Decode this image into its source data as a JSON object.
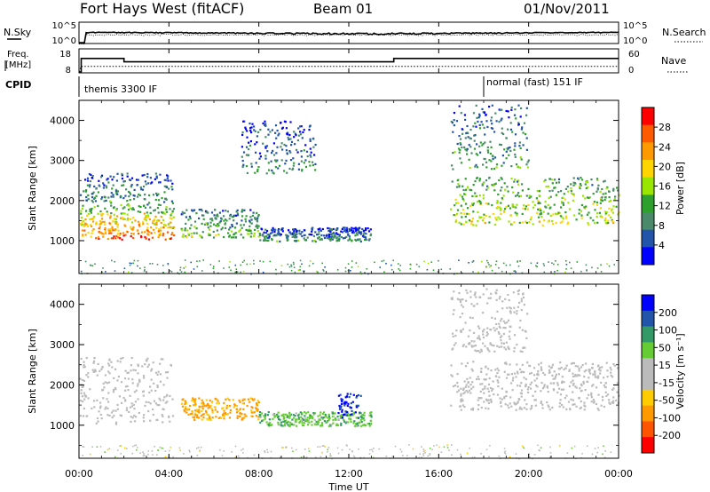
{
  "header": {
    "station": "Fort Hays West (fitACF)",
    "beam": "Beam 01",
    "date": "01/Nov/2011"
  },
  "noise_panel": {
    "left_label": "N.Sky",
    "right_label": "N.Search",
    "left_ticks": [
      "10^5",
      "10^0"
    ],
    "right_ticks": [
      "10^5",
      "10^0"
    ]
  },
  "freq_panel": {
    "left_label_1": "Freq.",
    "left_label_2": "[MHz]",
    "left_ticks": [
      "18",
      "8"
    ],
    "right_label": "Nave",
    "right_ticks": [
      "60",
      "0"
    ]
  },
  "cpid": {
    "label": "CPID",
    "modes": [
      {
        "name": "themis 3300 IF",
        "start_hour": 0,
        "end_hour": 18
      },
      {
        "name": "normal (fast) 151 IF",
        "start_hour": 18,
        "end_hour": 24
      }
    ]
  },
  "x_axis": {
    "label": "Time UT",
    "ticks": [
      "00:00",
      "04:00",
      "08:00",
      "12:00",
      "16:00",
      "20:00",
      "00:00"
    ],
    "range_hours": [
      0,
      24
    ]
  },
  "power_panel": {
    "ylabel": "Slant Range [km]",
    "yticks": [
      "1000",
      "2000",
      "3000",
      "4000"
    ],
    "colorbar_label": "Power [dB]",
    "colorbar_ticks": [
      "28",
      "24",
      "20",
      "16",
      "12",
      "8",
      "4"
    ],
    "colorbar_colors": [
      "#ff0000",
      "#ff5a00",
      "#ff9900",
      "#ffd500",
      "#99e600",
      "#2ea02e",
      "#4a8a6a",
      "#2255aa",
      "#0000ff"
    ]
  },
  "velocity_panel": {
    "ylabel": "Slant Range [km]",
    "yticks": [
      "1000",
      "2000",
      "3000",
      "4000"
    ],
    "colorbar_label": "Velocity [m s⁻¹]",
    "colorbar_ticks": [
      "200",
      "100",
      "50",
      "15",
      "-15",
      "-50",
      "-100",
      "-200"
    ],
    "colorbar_colors": [
      "#0000ff",
      "#2255aa",
      "#339966",
      "#66cc33",
      "#bbbbbb",
      "#bbbbbb",
      "#ffcc00",
      "#ff9900",
      "#ff5500",
      "#ff0000"
    ]
  },
  "chart_data": [
    {
      "type": "line",
      "title": "Fort Hays West (fitACF)",
      "xlabel": "",
      "ylabel": "N.Sky",
      "x_range_hours": [
        0,
        24
      ],
      "series": [
        {
          "name": "N.Sky",
          "x": [
            0,
            0.25,
            24
          ],
          "y": [
            1,
            400,
            300
          ]
        },
        {
          "name": "N.Search",
          "x": [
            0,
            0.25,
            24
          ],
          "y": [
            1,
            300,
            220
          ]
        }
      ]
    },
    {
      "type": "line",
      "xlabel": "",
      "ylabel": "Freq. [MHz]",
      "ylim": [
        8,
        18
      ],
      "x_range_hours": [
        0,
        24
      ],
      "series": [
        {
          "name": "Freq.",
          "x": [
            0,
            0.1,
            0.1,
            2,
            2,
            14,
            14,
            24
          ],
          "y": [
            8,
            8,
            16,
            16,
            14,
            14,
            16,
            16
          ]
        },
        {
          "name": "Nave",
          "x": [
            0,
            0.1,
            24
          ],
          "y": [
            0,
            20,
            20
          ]
        }
      ]
    },
    {
      "type": "heatmap",
      "title": "Power [dB]",
      "xlabel": "Time UT",
      "ylabel": "Slant Range [km]",
      "xlim": [
        0,
        24
      ],
      "ylim": [
        180,
        4500
      ],
      "value_ticks": [
        28,
        24,
        20,
        16,
        12,
        8,
        4
      ],
      "echo_regions": [
        {
          "t": [
            0,
            4.2
          ],
          "range": [
            1050,
            1700
          ],
          "power": 22
        },
        {
          "t": [
            0,
            4.2
          ],
          "range": [
            1700,
            2700
          ],
          "power": 8
        },
        {
          "t": [
            4.5,
            8
          ],
          "range": [
            1100,
            1800
          ],
          "power": 10
        },
        {
          "t": [
            8,
            13
          ],
          "range": [
            1000,
            1350
          ],
          "power": 6
        },
        {
          "t": [
            7.2,
            10.5
          ],
          "range": [
            2700,
            4000
          ],
          "power": 6
        },
        {
          "t": [
            16.5,
            24
          ],
          "range": [
            1400,
            2600
          ],
          "power": 14
        },
        {
          "t": [
            16.5,
            20
          ],
          "range": [
            2800,
            4400
          ],
          "power": 8
        }
      ]
    },
    {
      "type": "heatmap",
      "title": "Velocity [m s⁻¹]",
      "xlabel": "Time UT",
      "ylabel": "Slant Range [km]",
      "xlim": [
        0,
        24
      ],
      "ylim": [
        180,
        4500
      ],
      "value_ticks": [
        200,
        100,
        50,
        15,
        -15,
        -50,
        -100,
        -200
      ],
      "echo_regions": [
        {
          "t": [
            0,
            4.2
          ],
          "range": [
            1050,
            2700
          ],
          "velocity": 0
        },
        {
          "t": [
            4.5,
            8
          ],
          "range": [
            1150,
            1700
          ],
          "velocity": -110
        },
        {
          "t": [
            8,
            13
          ],
          "range": [
            1000,
            1350
          ],
          "velocity": 80
        },
        {
          "t": [
            11.5,
            12.5
          ],
          "range": [
            1200,
            1800
          ],
          "velocity": 200
        },
        {
          "t": [
            16.5,
            24
          ],
          "range": [
            1400,
            2600
          ],
          "velocity": 0
        },
        {
          "t": [
            16.5,
            20
          ],
          "range": [
            2800,
            4400
          ],
          "velocity": 0
        }
      ]
    }
  ]
}
